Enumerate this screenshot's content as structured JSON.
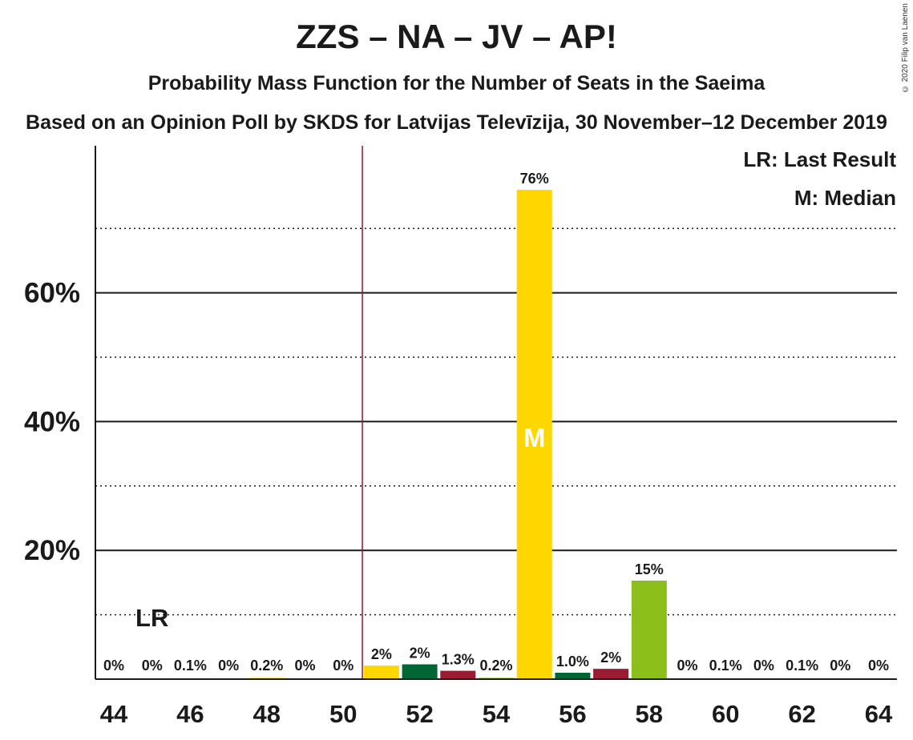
{
  "title": "ZZS – NA – JV – AP!",
  "subtitle": "Probability Mass Function for the Number of Seats in the Saeima",
  "subtitle2": "Based on an Opinion Poll by SKDS for Latvijas Televīzija, 30 November–12 December 2019",
  "copyright": "© 2020 Filip van Laenen",
  "legend": {
    "last_result": "LR: Last Result",
    "median": "M: Median"
  },
  "colors": {
    "yellow": "#FFD700",
    "dark_green": "#006633",
    "crimson": "#9B1B30",
    "lime_green": "#8CBF1A",
    "last_result_line": "#8B1A2B"
  },
  "chart_data": {
    "type": "bar",
    "title": "ZZS – NA – JV – AP!",
    "xlabel": "",
    "ylabel": "",
    "x": [
      44,
      45,
      46,
      47,
      48,
      49,
      50,
      51,
      52,
      53,
      54,
      55,
      56,
      57,
      58,
      59,
      60,
      61,
      62,
      63,
      64
    ],
    "values": [
      0,
      0,
      0.1,
      0,
      0.2,
      0,
      0,
      2.1,
      2.3,
      1.3,
      0.2,
      76,
      1.0,
      1.6,
      15.3,
      0,
      0.1,
      0,
      0.1,
      0,
      0
    ],
    "data_labels": [
      "0%",
      "0%",
      "0.1%",
      "0%",
      "0.2%",
      "0%",
      "0%",
      "2%",
      "2%",
      "1.3%",
      "0.2%",
      "76%",
      "1.0%",
      "2%",
      "15%",
      "0%",
      "0.1%",
      "0%",
      "0.1%",
      "0%",
      "0%"
    ],
    "bar_colors": [
      "#FFD700",
      "#006633",
      "#9B1B30",
      "#8CBF1A",
      "#FFD700",
      "#006633",
      "#9B1B30",
      "#FFD700",
      "#006633",
      "#9B1B30",
      "#8CBF1A",
      "#FFD700",
      "#006633",
      "#9B1B30",
      "#8CBF1A",
      "#FFD700",
      "#006633",
      "#9B1B30",
      "#8CBF1A",
      "#FFD700",
      "#006633"
    ],
    "x_ticks": [
      44,
      46,
      48,
      50,
      52,
      54,
      56,
      58,
      60,
      62,
      64
    ],
    "x_tick_labels": [
      "44",
      "46",
      "48",
      "50",
      "52",
      "54",
      "56",
      "58",
      "60",
      "62",
      "64"
    ],
    "y_ticks": [
      20,
      40,
      60
    ],
    "y_tick_labels": [
      "20%",
      "40%",
      "60%"
    ],
    "y_minor_gridlines": [
      10,
      30,
      50,
      70
    ],
    "ylim": [
      0,
      83
    ],
    "xlim": [
      43.5,
      64.5
    ],
    "last_result": {
      "seats": 45,
      "label": "LR"
    },
    "median": {
      "seats": 55,
      "label": "M"
    },
    "threshold_line": 50.5,
    "grid": true,
    "legend_position": "top-right"
  }
}
